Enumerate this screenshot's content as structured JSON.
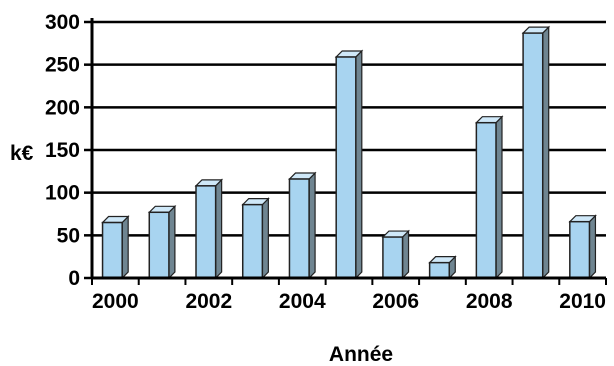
{
  "chart_data": {
    "type": "bar",
    "title": "",
    "xlabel": "Année",
    "ylabel": "k€",
    "ylim": [
      0,
      300
    ],
    "yticks": [
      0,
      50,
      100,
      150,
      200,
      250,
      300
    ],
    "x_tick_labels": [
      "2000",
      "2002",
      "2004",
      "2006",
      "2008",
      "2010"
    ],
    "categories": [
      "2000",
      "2001",
      "2002",
      "2003",
      "2004",
      "2005",
      "2006",
      "2007",
      "2008",
      "2009",
      "2010"
    ],
    "values": [
      65,
      77,
      108,
      86,
      116,
      259,
      48,
      18,
      182,
      287,
      66
    ],
    "grid": true,
    "legend": "none",
    "colors": {
      "bar": "#a8d4f0",
      "bar_edge": "#222222",
      "bar_side": "#6f8591",
      "axis": "#000000"
    }
  }
}
